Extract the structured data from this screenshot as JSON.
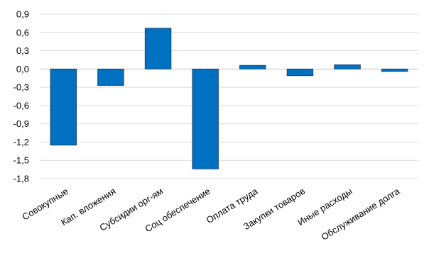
{
  "chart_data": {
    "type": "bar",
    "categories": [
      "Совокупные",
      "Кап. вложения",
      "Субсидии орг-ям",
      "Соц обеспечение",
      "Оплата труда",
      "Закупки товаров",
      "Иные расходы",
      "Обслуживание долга"
    ],
    "values": [
      -1.25,
      -0.27,
      0.67,
      -1.64,
      0.06,
      -0.11,
      0.07,
      -0.04
    ],
    "yticks": [
      "0,9",
      "0,6",
      "0,3",
      "0,0",
      "-0,3",
      "-0,6",
      "-0,9",
      "-1,2",
      "-1,5",
      "-1,8"
    ],
    "ytick_values": [
      0.9,
      0.6,
      0.3,
      0.0,
      -0.3,
      -0.6,
      -0.9,
      -1.2,
      -1.5,
      -1.8
    ],
    "ylim": [
      -1.8,
      0.9
    ],
    "grid": true,
    "legend": "none",
    "bar_color": "#0070c0"
  }
}
